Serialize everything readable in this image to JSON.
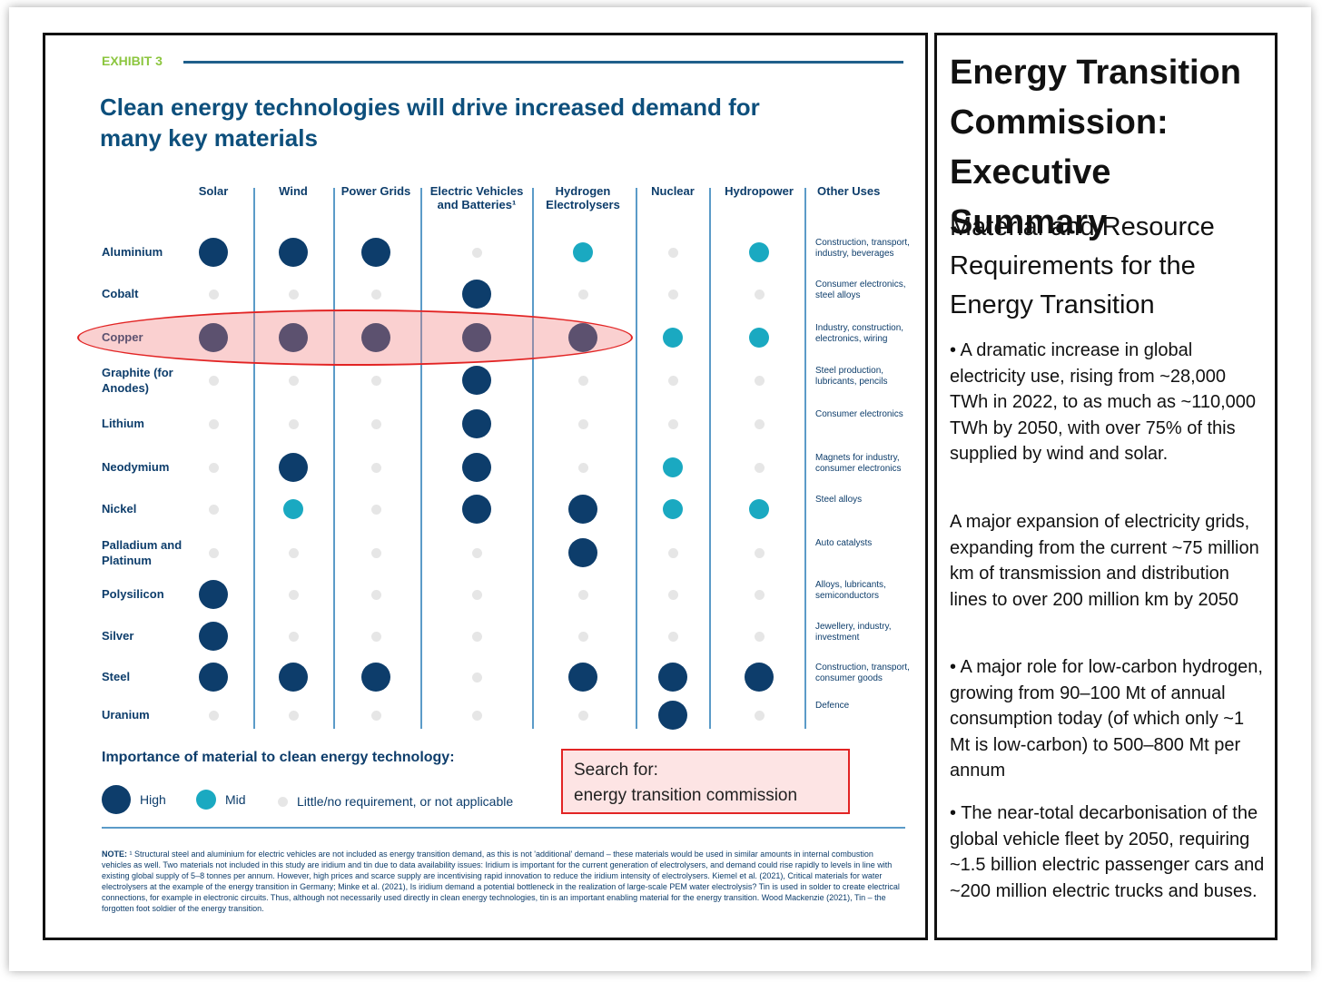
{
  "exhibit": {
    "label": "EXHIBIT 3",
    "title": "Clean energy technologies will drive increased demand for many key materials",
    "columns": [
      "Solar",
      "Wind",
      "Power Grids",
      "Electric Vehicles and Batteries¹",
      "Hydrogen Electrolysers",
      "Nuclear",
      "Hydropower"
    ],
    "other_uses_header": "Other Uses",
    "rows": [
      {
        "material": "Aluminium",
        "levels": [
          "high",
          "high",
          "high",
          "low",
          "mid",
          "low",
          "mid"
        ],
        "other_uses": "Construction, transport, industry, beverages"
      },
      {
        "material": "Cobalt",
        "levels": [
          "low",
          "low",
          "low",
          "high",
          "low",
          "low",
          "low"
        ],
        "other_uses": "Consumer electronics, steel alloys"
      },
      {
        "material": "Copper",
        "levels": [
          "high",
          "high",
          "high",
          "high",
          "high",
          "mid",
          "mid"
        ],
        "other_uses": "Industry, construction, electronics, wiring"
      },
      {
        "material": "Graphite (for Anodes)",
        "levels": [
          "low",
          "low",
          "low",
          "high",
          "low",
          "low",
          "low"
        ],
        "other_uses": "Steel production, lubricants, pencils"
      },
      {
        "material": "Lithium",
        "levels": [
          "low",
          "low",
          "low",
          "high",
          "low",
          "low",
          "low"
        ],
        "other_uses": "Consumer electronics"
      },
      {
        "material": "Neodymium",
        "levels": [
          "low",
          "high",
          "low",
          "high",
          "low",
          "mid",
          "low"
        ],
        "other_uses": "Magnets for industry, consumer electronics"
      },
      {
        "material": "Nickel",
        "levels": [
          "low",
          "mid",
          "low",
          "high",
          "high",
          "mid",
          "mid"
        ],
        "other_uses": "Steel alloys"
      },
      {
        "material": "Palladium and Platinum",
        "levels": [
          "low",
          "low",
          "low",
          "low",
          "high",
          "low",
          "low"
        ],
        "other_uses": "Auto catalysts"
      },
      {
        "material": "Polysilicon",
        "levels": [
          "high",
          "low",
          "low",
          "low",
          "low",
          "low",
          "low"
        ],
        "other_uses": "Alloys, lubricants, semiconductors"
      },
      {
        "material": "Silver",
        "levels": [
          "high",
          "low",
          "low",
          "low",
          "low",
          "low",
          "low"
        ],
        "other_uses": "Jewellery, industry, investment"
      },
      {
        "material": "Steel",
        "levels": [
          "high",
          "high",
          "high",
          "low",
          "high",
          "high",
          "high"
        ],
        "other_uses": "Construction, transport, consumer goods"
      },
      {
        "material": "Uranium",
        "levels": [
          "low",
          "low",
          "low",
          "low",
          "low",
          "high",
          "low"
        ],
        "other_uses": "Defence"
      }
    ],
    "legend": {
      "title": "Importance of material to clean energy technology:",
      "high": "High",
      "mid": "Mid",
      "low": "Little/no requirement, or not applicable"
    },
    "note_label": "NOTE:",
    "note_text": "¹ Structural steel and aluminium for electric vehicles are not included as energy transition demand, as this is not 'additional' demand – these materials would be used in similar amounts in internal combustion vehicles as well. Two materials not included in this study are iridium and tin due to data availability issues: Iridium is important for the current generation of electrolysers, and demand could rise rapidly to levels in line with existing global supply of 5–8 tonnes per annum. However, high prices and scarce supply are incentivising rapid innovation to reduce the iridium intensity of electrolysers. Kiemel et al. (2021), Critical materials for water electrolysers at the example of the energy transition in Germany; Minke et al. (2021), Is iridium demand a potential bottleneck in the realization of large-scale PEM water electrolysis? Tin is used in solder to create electrical connections, for example in electronic circuits. Thus, although not necessarily used directly in clean energy technologies, tin is an important enabling material for the energy transition. Wood Mackenzie (2021), Tin – the forgotten foot soldier of the energy transition.",
    "colors": {
      "high": "#0d3d6b",
      "mid": "#1aa9c1",
      "low": "#e6e6e6",
      "highlight": "#e22424"
    }
  },
  "search_hint": {
    "line1": "Search for:",
    "line2": "energy transition commission"
  },
  "summary": {
    "title": "Energy Transition Commission: Executive Summary",
    "subtitle": "Material and Resource Requirements for the Energy Transition",
    "points": [
      "• A dramatic increase in global electricity use, rising from ~28,000 TWh in 2022, to as much as ~110,000 TWh by 2050, with over 75% of this supplied by wind and solar.",
      "A major expansion of electricity grids, expanding from the current ~75 million km of transmission and distribution lines to over 200 million km by 2050",
      "• A major role for low-carbon hydrogen, growing from 90–100 Mt of annual consumption today (of which only ~1 Mt is low-carbon) to 500–800 Mt per annum",
      "• The near-total decarbonisation of the global vehicle fleet by 2050, requiring ~1.5 billion electric passenger cars and ~200 million electric trucks and buses."
    ]
  }
}
